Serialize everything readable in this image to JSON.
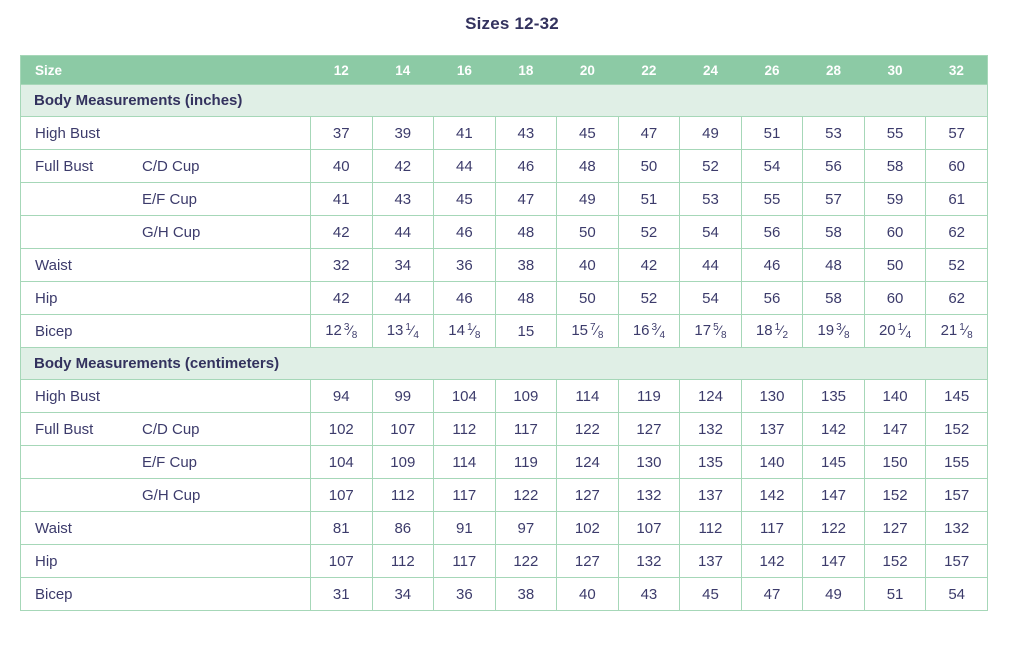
{
  "title": "Sizes 12-32",
  "colors": {
    "header_bg": "#8ccaa5",
    "header_text": "#ffffff",
    "section_bg": "#e0efe6",
    "border_green": "#a6d7b8",
    "text_navy": "#3c3b6b"
  },
  "table": {
    "header": {
      "label": "Size",
      "sizes": [
        "12",
        "14",
        "16",
        "18",
        "20",
        "22",
        "24",
        "26",
        "28",
        "30",
        "32"
      ]
    },
    "sections": [
      {
        "title": "Body Measurements (inches)",
        "rows": [
          {
            "label": "High Bust",
            "sublabel": "",
            "values": [
              "37",
              "39",
              "41",
              "43",
              "45",
              "47",
              "49",
              "51",
              "53",
              "55",
              "57"
            ]
          },
          {
            "label": "Full Bust",
            "sublabel": "C/D Cup",
            "values": [
              "40",
              "42",
              "44",
              "46",
              "48",
              "50",
              "52",
              "54",
              "56",
              "58",
              "60"
            ]
          },
          {
            "label": "",
            "sublabel": "E/F Cup",
            "values": [
              "41",
              "43",
              "45",
              "47",
              "49",
              "51",
              "53",
              "55",
              "57",
              "59",
              "61"
            ]
          },
          {
            "label": "",
            "sublabel": "G/H Cup",
            "values": [
              "42",
              "44",
              "46",
              "48",
              "50",
              "52",
              "54",
              "56",
              "58",
              "60",
              "62"
            ]
          },
          {
            "label": "Waist",
            "sublabel": "",
            "values": [
              "32",
              "34",
              "36",
              "38",
              "40",
              "42",
              "44",
              "46",
              "48",
              "50",
              "52"
            ]
          },
          {
            "label": "Hip",
            "sublabel": "",
            "values": [
              "42",
              "44",
              "46",
              "48",
              "50",
              "52",
              "54",
              "56",
              "58",
              "60",
              "62"
            ]
          },
          {
            "label": "Bicep",
            "sublabel": "",
            "values": [
              {
                "whole": "12",
                "num": "3",
                "den": "8"
              },
              {
                "whole": "13",
                "num": "1",
                "den": "4"
              },
              {
                "whole": "14",
                "num": "1",
                "den": "8"
              },
              "15",
              {
                "whole": "15",
                "num": "7",
                "den": "8"
              },
              {
                "whole": "16",
                "num": "3",
                "den": "4"
              },
              {
                "whole": "17",
                "num": "5",
                "den": "8"
              },
              {
                "whole": "18",
                "num": "1",
                "den": "2"
              },
              {
                "whole": "19",
                "num": "3",
                "den": "8"
              },
              {
                "whole": "20",
                "num": "1",
                "den": "4"
              },
              {
                "whole": "21",
                "num": "1",
                "den": "8"
              }
            ]
          }
        ]
      },
      {
        "title": "Body Measurements (centimeters)",
        "rows": [
          {
            "label": "High Bust",
            "sublabel": "",
            "values": [
              "94",
              "99",
              "104",
              "109",
              "114",
              "119",
              "124",
              "130",
              "135",
              "140",
              "145"
            ]
          },
          {
            "label": "Full Bust",
            "sublabel": "C/D Cup",
            "values": [
              "102",
              "107",
              "112",
              "117",
              "122",
              "127",
              "132",
              "137",
              "142",
              "147",
              "152"
            ]
          },
          {
            "label": "",
            "sublabel": "E/F Cup",
            "values": [
              "104",
              "109",
              "114",
              "119",
              "124",
              "130",
              "135",
              "140",
              "145",
              "150",
              "155"
            ]
          },
          {
            "label": "",
            "sublabel": "G/H Cup",
            "values": [
              "107",
              "112",
              "117",
              "122",
              "127",
              "132",
              "137",
              "142",
              "147",
              "152",
              "157"
            ]
          },
          {
            "label": "Waist",
            "sublabel": "",
            "values": [
              "81",
              "86",
              "91",
              "97",
              "102",
              "107",
              "112",
              "117",
              "122",
              "127",
              "132"
            ]
          },
          {
            "label": "Hip",
            "sublabel": "",
            "values": [
              "107",
              "112",
              "117",
              "122",
              "127",
              "132",
              "137",
              "142",
              "147",
              "152",
              "157"
            ]
          },
          {
            "label": "Bicep",
            "sublabel": "",
            "values": [
              "31",
              "34",
              "36",
              "38",
              "40",
              "43",
              "45",
              "47",
              "49",
              "51",
              "54"
            ]
          }
        ]
      }
    ]
  }
}
